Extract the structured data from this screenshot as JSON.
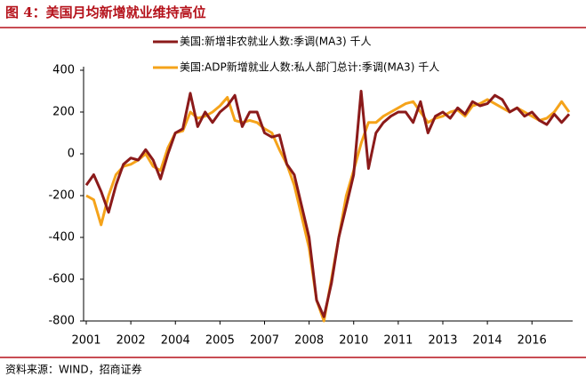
{
  "title": "图 4：美国月均新增就业维持高位",
  "source": "资料来源：WIND，招商证券",
  "chart_data": {
    "type": "line",
    "categories": [
      "2001",
      null,
      null,
      null,
      null,
      null,
      "2002",
      null,
      null,
      null,
      null,
      null,
      "2004",
      null,
      null,
      null,
      null,
      null,
      "2005",
      null,
      null,
      null,
      null,
      null,
      "2007",
      null,
      null,
      null,
      null,
      null,
      "2008",
      null,
      null,
      null,
      null,
      null,
      "2010",
      null,
      null,
      null,
      null,
      null,
      "2011",
      null,
      null,
      null,
      null,
      null,
      "2013",
      null,
      null,
      null,
      null,
      null,
      "2014",
      null,
      null,
      null,
      null,
      null,
      "2016",
      null,
      null,
      null,
      null,
      null
    ],
    "series": [
      {
        "name": "美国:新增非农就业人数:季调(MA3) 千人",
        "color": "#8b1a1a",
        "values": [
          -150,
          -100,
          -180,
          -280,
          -150,
          -50,
          -20,
          -30,
          20,
          -30,
          -120,
          0,
          100,
          120,
          290,
          130,
          200,
          150,
          200,
          230,
          280,
          130,
          200,
          200,
          100,
          80,
          90,
          -50,
          -100,
          -250,
          -400,
          -700,
          -780,
          -620,
          -400,
          -250,
          -100,
          300,
          -70,
          100,
          150,
          180,
          200,
          200,
          150,
          250,
          100,
          180,
          200,
          170,
          220,
          190,
          250,
          230,
          240,
          280,
          260,
          200,
          220,
          180,
          200,
          160,
          140,
          190,
          150,
          190
        ]
      },
      {
        "name": "美国:ADP新增就业人数:私人部门总计:季调(MA3) 千人",
        "color": "#f5a31a",
        "values": [
          -200,
          -220,
          -340,
          -200,
          -100,
          -60,
          -50,
          -30,
          0,
          -60,
          -80,
          30,
          100,
          110,
          200,
          170,
          180,
          200,
          230,
          270,
          160,
          150,
          160,
          150,
          120,
          100,
          20,
          -50,
          -150,
          -300,
          -450,
          -700,
          -800,
          -600,
          -400,
          -200,
          -80,
          50,
          150,
          150,
          180,
          200,
          220,
          240,
          250,
          200,
          150,
          170,
          180,
          200,
          210,
          180,
          230,
          240,
          260,
          240,
          220,
          200,
          220,
          200,
          180,
          160,
          170,
          200,
          250,
          200
        ]
      }
    ],
    "ylim": [
      -800,
      400
    ],
    "yticks": [
      -800,
      -600,
      -400,
      -200,
      0,
      200,
      400
    ]
  }
}
